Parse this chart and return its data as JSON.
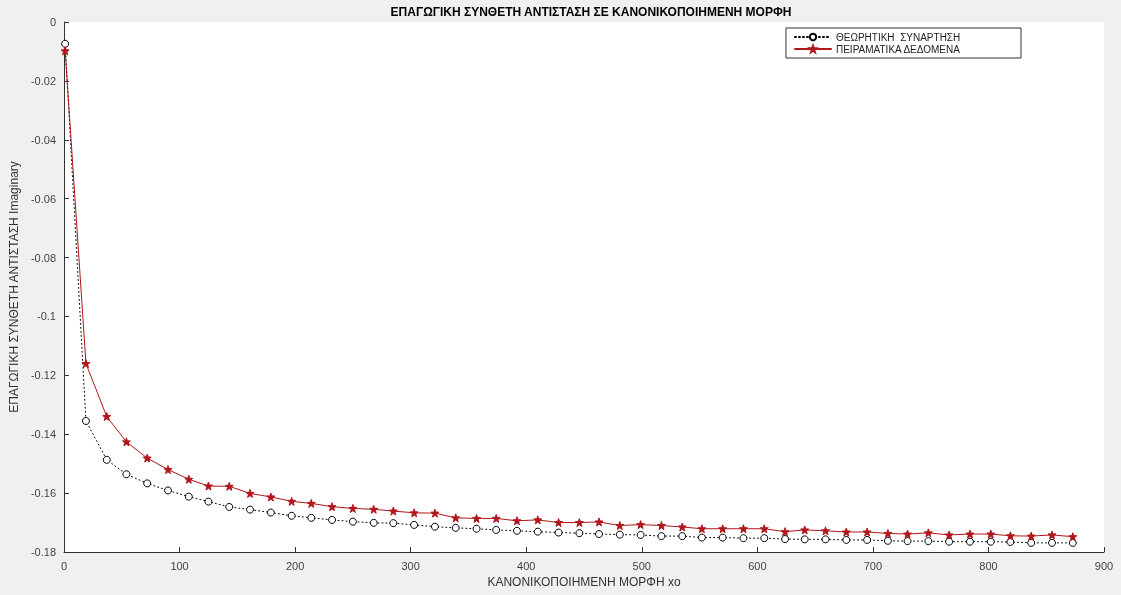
{
  "chart_data": {
    "type": "line",
    "title": "ΕΠΑΓΩΓΙΚΗ ΣΥΝΘΕΤΗ ΑΝΤΙΣΤΑΣΗ ΣΕ ΚΑΝΟΝΙΚΟΠΟΙΗΜΕΝΗ ΜΟΡΦΗ",
    "xlabel": "ΚΑΝΟΝΙΚΟΠΟΙΗΜΕΝΗ ΜΟΡΦΗ xo",
    "ylabel": "ΕΠΑΓΩΓΙΚΗ ΣΥΝΘΕΤΗ ΑΝΤΙΣΤΑΣΗ Imaginary",
    "x": [
      1,
      19,
      37,
      54,
      72,
      90,
      108,
      125,
      143,
      161,
      179,
      197,
      214,
      232,
      250,
      268,
      285,
      303,
      321,
      339,
      357,
      374,
      392,
      410,
      428,
      446,
      463,
      481,
      499,
      517,
      535,
      552,
      570,
      588,
      606,
      624,
      641,
      659,
      677,
      695,
      713,
      730,
      748,
      766,
      784,
      802,
      819,
      837,
      855,
      873
    ],
    "series": [
      {
        "name": "ΘΕΩΡΗΤΙΚΗ  ΣΥΝΑΡΤΗΣΗ",
        "color": "#000000",
        "marker": "circle",
        "line_style": "dotted",
        "values": [
          -0.0074,
          -0.1355,
          -0.1487,
          -0.1536,
          -0.1567,
          -0.1591,
          -0.1612,
          -0.1629,
          -0.1647,
          -0.1656,
          -0.1666,
          -0.1677,
          -0.1684,
          -0.1691,
          -0.1697,
          -0.1701,
          -0.1702,
          -0.1708,
          -0.1714,
          -0.1718,
          -0.1721,
          -0.1725,
          -0.1728,
          -0.1731,
          -0.1734,
          -0.1736,
          -0.1739,
          -0.1741,
          -0.1742,
          -0.1746,
          -0.1746,
          -0.1751,
          -0.1751,
          -0.1753,
          -0.1753,
          -0.1756,
          -0.1757,
          -0.1757,
          -0.1759,
          -0.1759,
          -0.1762,
          -0.1763,
          -0.1763,
          -0.1765,
          -0.1765,
          -0.1765,
          -0.1766,
          -0.1769,
          -0.1769,
          -0.1769
        ]
      },
      {
        "name": "ΠΕΙΡΑΜΑΤΙΚΑ ΔΕΔΟΜΕΝΑ",
        "color": "#b0161c",
        "marker": "star",
        "line_style": "solid",
        "values": [
          -0.0098,
          -0.116,
          -0.134,
          -0.1426,
          -0.1481,
          -0.152,
          -0.1553,
          -0.1576,
          -0.1577,
          -0.1601,
          -0.1613,
          -0.1628,
          -0.1635,
          -0.1646,
          -0.1652,
          -0.1655,
          -0.1661,
          -0.1667,
          -0.1668,
          -0.1684,
          -0.1686,
          -0.1686,
          -0.1694,
          -0.1691,
          -0.17,
          -0.17,
          -0.1698,
          -0.171,
          -0.1707,
          -0.171,
          -0.1715,
          -0.1721,
          -0.1721,
          -0.1721,
          -0.1721,
          -0.1731,
          -0.1725,
          -0.1728,
          -0.1732,
          -0.1732,
          -0.1737,
          -0.1739,
          -0.1735,
          -0.1742,
          -0.1739,
          -0.1739,
          -0.1745,
          -0.1746,
          -0.1742,
          -0.1748
        ]
      }
    ],
    "xlim": [
      0,
      900
    ],
    "xticks": [
      0,
      100,
      200,
      300,
      400,
      500,
      600,
      700,
      800,
      900
    ],
    "ylim": [
      -0.18,
      0
    ],
    "yticks": [
      -0.18,
      -0.16,
      -0.14,
      -0.12,
      -0.1,
      -0.08,
      -0.06,
      -0.04,
      -0.02,
      0
    ],
    "grid": false,
    "legend": "top right"
  }
}
